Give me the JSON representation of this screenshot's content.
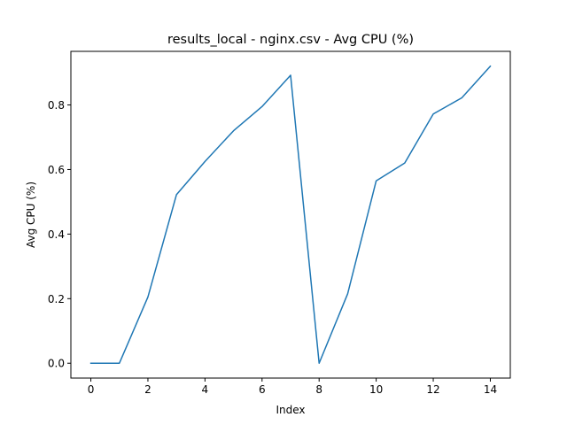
{
  "chart_data": {
    "type": "line",
    "title": "results_local - nginx.csv - Avg CPU (%)",
    "xlabel": "Index",
    "ylabel": "Avg CPU (%)",
    "xlim": [
      -0.7,
      14.7
    ],
    "ylim": [
      -0.046,
      0.966
    ],
    "xticks": [
      0,
      2,
      4,
      6,
      8,
      10,
      12,
      14
    ],
    "yticks": [
      0.0,
      0.2,
      0.4,
      0.6,
      0.8
    ],
    "xtick_labels": [
      "0",
      "2",
      "4",
      "6",
      "8",
      "10",
      "12",
      "14"
    ],
    "ytick_labels": [
      "0.0",
      "0.2",
      "0.4",
      "0.6",
      "0.8"
    ],
    "grid": false,
    "series": [
      {
        "x": [
          0,
          1,
          2,
          3,
          4,
          5,
          6,
          7,
          8,
          9,
          10,
          11,
          12,
          13,
          14
        ],
        "values": [
          0.0,
          0.0,
          0.205,
          0.522,
          0.625,
          0.72,
          0.795,
          0.892,
          0.0,
          0.215,
          0.565,
          0.62,
          0.772,
          0.822,
          0.92
        ],
        "color": "#1f77b4"
      }
    ]
  }
}
